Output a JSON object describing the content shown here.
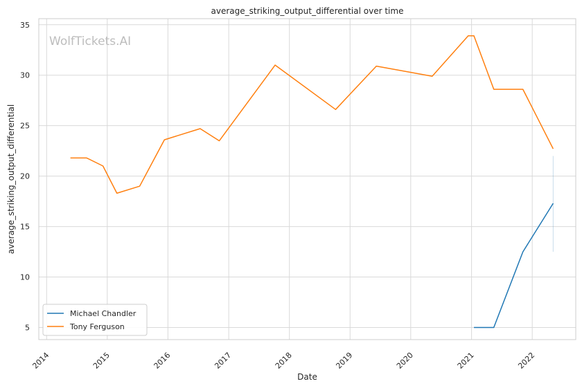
{
  "chart_data": {
    "type": "line",
    "title": "average_striking_output_differential over time",
    "xlabel": "Date",
    "ylabel": "average_striking_output_differential",
    "watermark": "WolfTickets.AI",
    "xlim": [
      "2013-11-15",
      "2022-09-20"
    ],
    "ylim": [
      3.8,
      35.6
    ],
    "x_ticks": [
      "2014",
      "2015",
      "2016",
      "2017",
      "2018",
      "2019",
      "2020",
      "2021",
      "2022"
    ],
    "y_ticks": [
      5,
      10,
      15,
      20,
      25,
      30,
      35
    ],
    "grid": true,
    "legend_position": "lower-left",
    "colors": {
      "Michael Chandler": "#1f77b4",
      "Tony Ferguson": "#ff7f0e",
      "grid": "#d9d9d9",
      "spine": "#cccccc"
    },
    "series": [
      {
        "name": "Michael Chandler",
        "color": "#1f77b4",
        "points": [
          {
            "x": "2021-01-15",
            "y": 5.0
          },
          {
            "x": "2021-05-15",
            "y": 5.0
          },
          {
            "x": "2021-11-06",
            "y": 12.5
          },
          {
            "x": "2022-05-07",
            "y": 17.3
          }
        ],
        "error_band_last": {
          "x": "2022-05-07",
          "low": 12.5,
          "high": 22.0
        }
      },
      {
        "name": "Tony Ferguson",
        "color": "#ff7f0e",
        "points": [
          {
            "x": "2014-05-24",
            "y": 21.8
          },
          {
            "x": "2014-08-30",
            "y": 21.8
          },
          {
            "x": "2014-12-06",
            "y": 21.0
          },
          {
            "x": "2015-02-28",
            "y": 18.3
          },
          {
            "x": "2015-07-15",
            "y": 19.0
          },
          {
            "x": "2015-12-11",
            "y": 23.6
          },
          {
            "x": "2016-07-13",
            "y": 24.7
          },
          {
            "x": "2016-11-05",
            "y": 23.5
          },
          {
            "x": "2017-10-07",
            "y": 31.0
          },
          {
            "x": "2018-10-06",
            "y": 26.6
          },
          {
            "x": "2019-06-08",
            "y": 30.9
          },
          {
            "x": "2020-05-09",
            "y": 29.9
          },
          {
            "x": "2020-12-12",
            "y": 33.9
          },
          {
            "x": "2021-01-15",
            "y": 33.9
          },
          {
            "x": "2021-05-15",
            "y": 28.6
          },
          {
            "x": "2021-11-06",
            "y": 28.6
          },
          {
            "x": "2022-05-07",
            "y": 22.7
          }
        ]
      }
    ]
  }
}
